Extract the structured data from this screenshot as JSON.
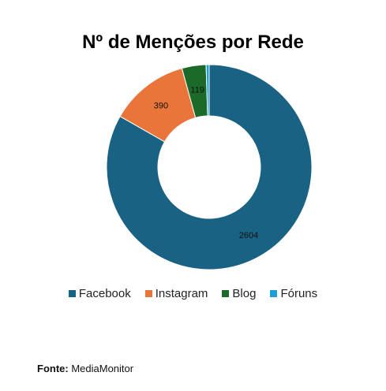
{
  "chart_data": {
    "type": "donut",
    "title": "Nº de Menções por Rede",
    "categories": [
      "Facebook",
      "Instagram",
      "Blog",
      "Fóruns"
    ],
    "values": [
      2604,
      390,
      119,
      15
    ],
    "data_labels": [
      "2604",
      "390",
      "119",
      ""
    ],
    "colors": [
      "#1a6284",
      "#e9753a",
      "#1c6a2a",
      "#1f9fd3"
    ],
    "legend_position": "bottom"
  },
  "source": {
    "label": "Fonte:",
    "text": "MediaMonitor"
  }
}
